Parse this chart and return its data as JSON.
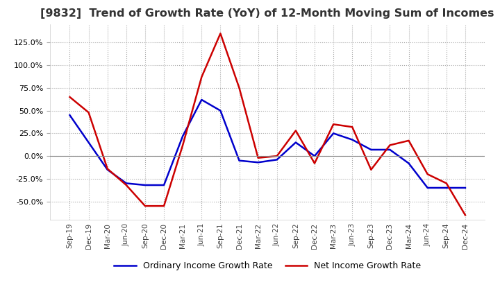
{
  "title": "[9832]  Trend of Growth Rate (YoY) of 12-Month Moving Sum of Incomes",
  "title_fontsize": 11.5,
  "x_labels": [
    "Sep-19",
    "Dec-19",
    "Mar-20",
    "Jun-20",
    "Sep-20",
    "Dec-20",
    "Mar-21",
    "Jun-21",
    "Sep-21",
    "Dec-21",
    "Mar-22",
    "Jun-22",
    "Sep-22",
    "Dec-22",
    "Mar-23",
    "Jun-23",
    "Sep-23",
    "Dec-23",
    "Mar-24",
    "Jun-24",
    "Sep-24",
    "Dec-24"
  ],
  "ordinary_income": [
    45,
    15,
    -15,
    -30,
    -32,
    -32,
    22,
    62,
    50,
    -5,
    -7,
    -4,
    15,
    0,
    25,
    18,
    7,
    7,
    -8,
    -35,
    -35,
    -35
  ],
  "net_income": [
    65,
    48,
    -14,
    -32,
    -55,
    -55,
    12,
    87,
    135,
    75,
    -2,
    0,
    28,
    -8,
    35,
    32,
    -15,
    12,
    17,
    -20,
    -30,
    -65
  ],
  "ylim": [
    -70,
    145
  ],
  "yticks": [
    -50,
    -25,
    0,
    25,
    50,
    75,
    100,
    125
  ],
  "ordinary_color": "#0000cc",
  "net_color": "#cc0000",
  "background_color": "#ffffff",
  "grid_color": "#aaaaaa",
  "legend_ordinary": "Ordinary Income Growth Rate",
  "legend_net": "Net Income Growth Rate"
}
